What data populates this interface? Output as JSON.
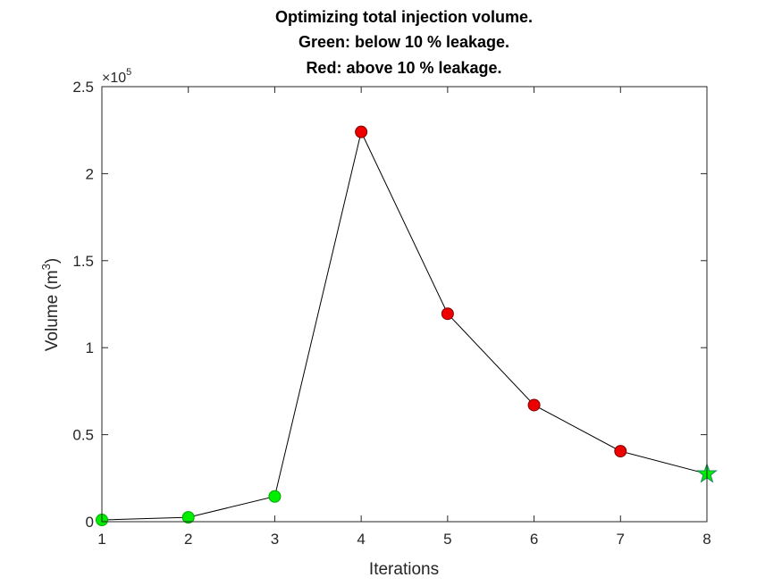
{
  "chart_data": {
    "type": "line",
    "title_lines": [
      "Optimizing total injection volume.",
      "Green: below 10 % leakage.",
      "Red: above 10 % leakage."
    ],
    "xlabel": "Iterations",
    "ylabel": "Volume (m",
    "ylabel_sup": "3",
    "ylabel_close": ")",
    "y_exponent_base": "×10",
    "y_exponent_power": "5",
    "xlim": [
      1,
      8
    ],
    "ylim": [
      0,
      250000
    ],
    "x_ticks": [
      1,
      2,
      3,
      4,
      5,
      6,
      7,
      8
    ],
    "x_tick_labels": [
      "1",
      "2",
      "3",
      "4",
      "5",
      "6",
      "7",
      "8"
    ],
    "y_ticks": [
      0,
      50000,
      100000,
      150000,
      200000,
      250000
    ],
    "y_tick_labels": [
      "0",
      "0.5",
      "1",
      "1.5",
      "2",
      "2.5"
    ],
    "grid": false,
    "points": [
      {
        "x": 1,
        "y": 1000,
        "status": "below",
        "marker": "circle"
      },
      {
        "x": 2,
        "y": 2500,
        "status": "below",
        "marker": "circle"
      },
      {
        "x": 3,
        "y": 14500,
        "status": "below",
        "marker": "circle"
      },
      {
        "x": 4,
        "y": 224000,
        "status": "above",
        "marker": "circle"
      },
      {
        "x": 5,
        "y": 119500,
        "status": "above",
        "marker": "circle"
      },
      {
        "x": 6,
        "y": 67000,
        "status": "above",
        "marker": "circle"
      },
      {
        "x": 7,
        "y": 40500,
        "status": "above",
        "marker": "circle"
      },
      {
        "x": 8,
        "y": 27500,
        "status": "below",
        "marker": "star"
      }
    ],
    "colors": {
      "below": "#00ee00",
      "above": "#ee0000",
      "line": "#000000",
      "axis": "#262626"
    }
  }
}
